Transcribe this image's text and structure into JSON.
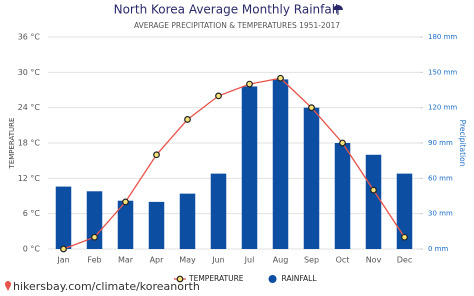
{
  "chart_data": {
    "type": "bar",
    "title": "North Korea Average Monthly Rainfall",
    "subtitle": "AVERAGE PRECIPITATION & TEMPERATURES 1951-2017",
    "y_label": "TEMPERATURE",
    "y2_label": "Precipitation",
    "categories": [
      "Jan",
      "Feb",
      "Mar",
      "Apr",
      "May",
      "Jun",
      "Jul",
      "Aug",
      "Sep",
      "Oct",
      "Nov",
      "Dec"
    ],
    "series": [
      {
        "name": "TEMPERATURE",
        "type": "line",
        "axis": "y",
        "color": "#e8534a",
        "values": [
          0,
          2,
          8,
          16,
          22,
          26,
          28,
          29,
          24,
          18,
          10,
          2
        ]
      },
      {
        "name": "RAINFALL",
        "type": "bar",
        "axis": "y2",
        "color": "#0b4ea2",
        "values": [
          53,
          49,
          41,
          40,
          47,
          64,
          138,
          144,
          120,
          90,
          80,
          64
        ]
      }
    ],
    "ylim": [
      0,
      36
    ],
    "yticks": [
      {
        "value": 0,
        "label": "0 °C"
      },
      {
        "value": 6,
        "label": "6 °C"
      },
      {
        "value": 12,
        "label": "12 °C"
      },
      {
        "value": 18,
        "label": "18 °C"
      },
      {
        "value": 24,
        "label": "24 °C"
      },
      {
        "value": 30,
        "label": "30 °C"
      },
      {
        "value": 36,
        "label": "36 °C"
      }
    ],
    "y2lim": [
      0,
      180
    ],
    "y2ticks": [
      {
        "value": 0,
        "label": "0 mm"
      },
      {
        "value": 30,
        "label": "30 mm"
      },
      {
        "value": 60,
        "label": "60 mm"
      },
      {
        "value": 90,
        "label": "90 mm"
      },
      {
        "value": 120,
        "label": "120 mm"
      },
      {
        "value": 150,
        "label": "150 mm"
      },
      {
        "value": 180,
        "label": "180 mm"
      }
    ],
    "grid": true,
    "footer": "hikersbay.com/climate/koreanorth"
  }
}
